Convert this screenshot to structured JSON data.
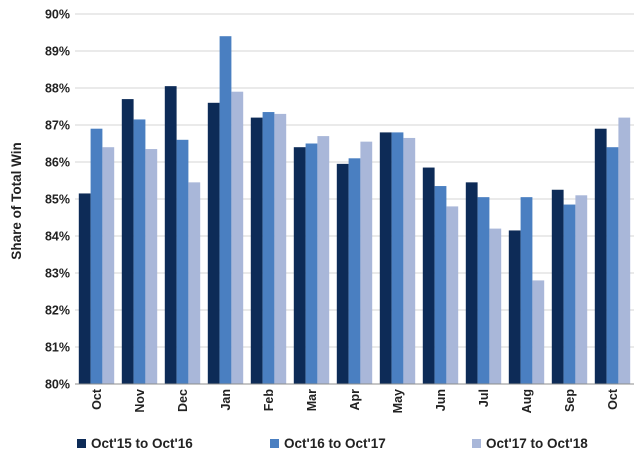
{
  "chart_data": {
    "type": "bar",
    "ylabel": "Share of Total Win",
    "ylim": [
      80,
      90
    ],
    "y_ticks": [
      80,
      81,
      82,
      83,
      84,
      85,
      86,
      87,
      88,
      89,
      90
    ],
    "y_tick_suffix": "%",
    "grid": true,
    "legend_position": "bottom",
    "categories": [
      "Oct",
      "Nov",
      "Dec",
      "Jan",
      "Feb",
      "Mar",
      "Apr",
      "May",
      "Jun",
      "Jul",
      "Aug",
      "Sep",
      "Oct"
    ],
    "series": [
      {
        "name": "Oct'15 to Oct'16",
        "color": "#0d2b57",
        "values": [
          85.15,
          87.7,
          88.05,
          87.6,
          87.2,
          86.4,
          85.95,
          86.8,
          85.85,
          85.45,
          84.15,
          85.25,
          86.9
        ]
      },
      {
        "name": "Oct'16 to Oct'17",
        "color": "#4a7fc1",
        "values": [
          86.9,
          87.15,
          86.6,
          89.4,
          87.35,
          86.5,
          86.1,
          86.8,
          85.35,
          85.05,
          85.05,
          84.85,
          86.4
        ]
      },
      {
        "name": "Oct'17 to Oct'18",
        "color": "#a9b7d9",
        "values": [
          86.4,
          86.35,
          85.45,
          87.9,
          87.3,
          86.7,
          86.55,
          86.65,
          84.8,
          84.2,
          82.8,
          85.1,
          87.2
        ]
      }
    ]
  }
}
